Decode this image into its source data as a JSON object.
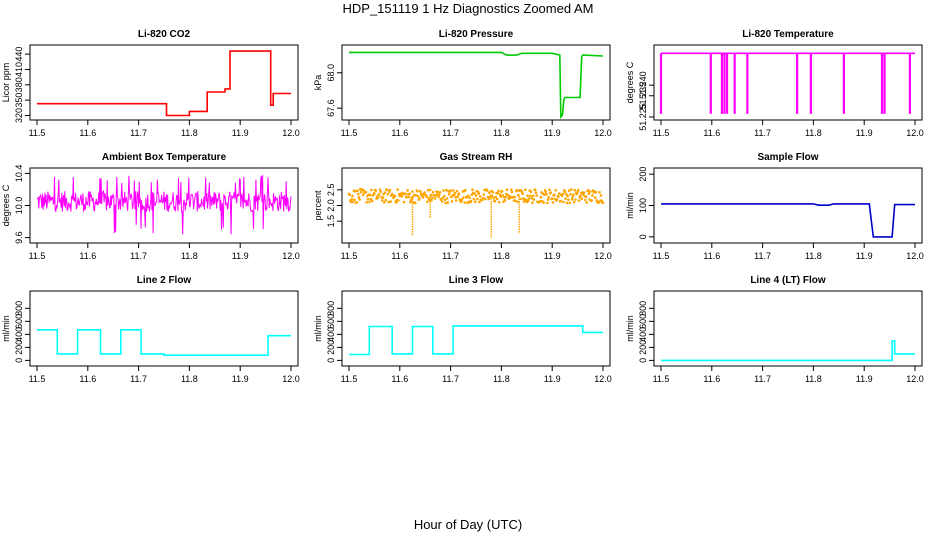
{
  "page": {
    "title": "HDP_151119  1 Hz Diagnostics Zoomed AM",
    "xlabel": "Hour of Day (UTC)"
  },
  "chart_data": [
    {
      "type": "line",
      "title": "Li-820 CO2",
      "ylabel": "Licor ppm",
      "color": "#ff0000",
      "xlim": [
        11.5,
        12.0
      ],
      "ylim": [
        317,
        452
      ],
      "xticks": [
        "11.5",
        "11.6",
        "11.7",
        "11.8",
        "11.9",
        "12.0"
      ],
      "yticks": [
        {
          "v": 320,
          "label": "320"
        },
        {
          "v": 350,
          "label": "350"
        },
        {
          "v": 380,
          "label": "380"
        },
        {
          "v": 410,
          "label": "410"
        },
        {
          "v": 440,
          "label": "440"
        }
      ],
      "series": [
        {
          "x": [
            11.5,
            11.755,
            11.755,
            11.8,
            11.8,
            11.835,
            11.835,
            11.87,
            11.87,
            11.88,
            11.88,
            11.96,
            11.96,
            11.965,
            11.965,
            12.0
          ],
          "y": [
            343,
            343,
            320,
            320,
            328,
            328,
            366,
            366,
            372,
            372,
            446,
            446,
            340,
            340,
            363,
            363
          ]
        }
      ]
    },
    {
      "type": "line",
      "title": "Li-820 Pressure",
      "ylabel": "kPa",
      "color": "#00cc00",
      "xlim": [
        11.5,
        12.0
      ],
      "ylim": [
        67.5,
        68.28
      ],
      "xticks": [
        "11.5",
        "11.6",
        "11.7",
        "11.8",
        "11.9",
        "12.0"
      ],
      "yticks": [
        {
          "v": 67.6,
          "label": "67.6"
        },
        {
          "v": 68.0,
          "label": "68.0"
        }
      ],
      "series": [
        {
          "x": [
            11.5,
            11.8,
            11.81,
            11.83,
            11.84,
            11.9,
            11.915,
            11.917,
            11.92,
            11.923,
            11.925,
            11.955,
            11.958,
            11.96,
            11.963,
            12.0
          ],
          "y": [
            68.23,
            68.23,
            68.2,
            68.2,
            68.22,
            68.22,
            68.2,
            67.5,
            67.52,
            67.7,
            67.72,
            67.72,
            68.18,
            68.2,
            68.2,
            68.19
          ]
        }
      ]
    },
    {
      "type": "line",
      "title": "Li-820 Temperature",
      "ylabel": "degrees C",
      "color": "#ff00ff",
      "xlim": [
        11.5,
        12.0
      ],
      "ylim": [
        51.225,
        51.2575
      ],
      "xticks": [
        "11.5",
        "11.6",
        "11.7",
        "11.8",
        "11.9",
        "12.0"
      ],
      "yticks": [
        {
          "v": 51.225,
          "label": "51.225"
        },
        {
          "v": 51.235,
          "label": "51.235"
        },
        {
          "v": 51.24,
          "label": "51.240"
        }
      ],
      "baseline": 51.255,
      "drops": [
        11.5,
        11.598,
        11.62,
        11.625,
        11.63,
        11.645,
        11.67,
        11.768,
        11.795,
        11.86,
        11.935,
        11.94,
        11.99
      ],
      "dropTo": 51.2265
    },
    {
      "type": "line",
      "title": "Ambient Box Temperature",
      "ylabel": "degrees C",
      "color": "#ff00ff",
      "xlim": [
        11.5,
        12.0
      ],
      "ylim": [
        9.57,
        10.43
      ],
      "xticks": [
        "11.5",
        "11.6",
        "11.7",
        "11.8",
        "11.9",
        "12.0"
      ],
      "yticks": [
        {
          "v": 9.6,
          "label": "9.6"
        },
        {
          "v": 10.0,
          "label": "10.0"
        },
        {
          "v": 10.4,
          "label": "10.4"
        }
      ],
      "noise": {
        "center": 10.05,
        "amp": 0.13,
        "spikeHigh": 10.38,
        "spikeLow": 9.62
      }
    },
    {
      "type": "scatter",
      "title": "Gas Stream RH",
      "ylabel": "percent",
      "color": "#ffa500",
      "xlim": [
        11.5,
        12.0
      ],
      "ylim": [
        0.9,
        3.1
      ],
      "xticks": [
        "11.5",
        "11.6",
        "11.7",
        "11.8",
        "11.9",
        "12.0"
      ],
      "yticks": [
        {
          "v": 1.5,
          "label": "1.5"
        },
        {
          "v": 2.0,
          "label": "2.0"
        },
        {
          "v": 2.5,
          "label": "2.5"
        }
      ],
      "noise": {
        "center": 2.3,
        "amp": 0.22
      },
      "dips": [
        {
          "x": 11.625,
          "y": 1.05
        },
        {
          "x": 11.66,
          "y": 1.6
        },
        {
          "x": 11.78,
          "y": 0.95
        },
        {
          "x": 11.835,
          "y": 1.1
        }
      ]
    },
    {
      "type": "line",
      "title": "Sample Flow",
      "ylabel": "ml/min",
      "color": "#0000cc",
      "xlim": [
        11.5,
        12.0
      ],
      "ylim": [
        -10,
        210
      ],
      "xticks": [
        "11.5",
        "11.6",
        "11.7",
        "11.8",
        "11.9",
        "12.0"
      ],
      "yticks": [
        {
          "v": 0,
          "label": "0"
        },
        {
          "v": 100,
          "label": "100"
        },
        {
          "v": 200,
          "label": "200"
        }
      ],
      "series": [
        {
          "x": [
            11.5,
            11.8,
            11.81,
            11.83,
            11.84,
            11.91,
            11.918,
            11.955,
            11.96,
            12.0
          ],
          "y": [
            105,
            105,
            101,
            101,
            105,
            105,
            0,
            0,
            103,
            103
          ]
        }
      ]
    },
    {
      "type": "line",
      "title": "Line 2 Flow",
      "ylabel": "ml/min",
      "color": "#00ffff",
      "xlim": [
        11.5,
        12.0
      ],
      "ylim": [
        -40,
        1020
      ],
      "xticks": [
        "11.5",
        "11.6",
        "11.7",
        "11.8",
        "11.9",
        "12.0"
      ],
      "yticks": [
        {
          "v": 0,
          "label": "0"
        },
        {
          "v": 200,
          "label": "200"
        },
        {
          "v": 400,
          "label": "400"
        },
        {
          "v": 600,
          "label": "600"
        },
        {
          "v": 800,
          "label": "800"
        }
      ],
      "series": [
        {
          "x": [
            11.5,
            11.54,
            11.54,
            11.58,
            11.58,
            11.625,
            11.625,
            11.665,
            11.665,
            11.705,
            11.705,
            11.75,
            11.75,
            11.955,
            11.955,
            12.0
          ],
          "y": [
            470,
            470,
            100,
            100,
            470,
            470,
            100,
            100,
            470,
            470,
            100,
            100,
            80,
            80,
            380,
            380
          ]
        }
      ]
    },
    {
      "type": "line",
      "title": "Line 3 Flow",
      "ylabel": "ml/min",
      "color": "#00ffff",
      "xlim": [
        11.5,
        12.0
      ],
      "ylim": [
        -40,
        1020
      ],
      "xticks": [
        "11.5",
        "11.6",
        "11.7",
        "11.8",
        "11.9",
        "12.0"
      ],
      "yticks": [
        {
          "v": 0,
          "label": "0"
        },
        {
          "v": 200,
          "label": "200"
        },
        {
          "v": 400,
          "label": "400"
        },
        {
          "v": 600,
          "label": "600"
        },
        {
          "v": 800,
          "label": "800"
        }
      ],
      "series": [
        {
          "x": [
            11.5,
            11.54,
            11.54,
            11.585,
            11.585,
            11.625,
            11.625,
            11.665,
            11.665,
            11.705,
            11.705,
            11.96,
            11.96,
            12.0
          ],
          "y": [
            90,
            90,
            520,
            520,
            100,
            100,
            520,
            520,
            100,
            100,
            530,
            530,
            430,
            430
          ]
        }
      ]
    },
    {
      "type": "line",
      "title": "Line 4 (LT) Flow",
      "ylabel": "ml/min",
      "color": "#00ffff",
      "xlim": [
        11.5,
        12.0
      ],
      "ylim": [
        -40,
        1020
      ],
      "xticks": [
        "11.5",
        "11.6",
        "11.7",
        "11.8",
        "11.9",
        "12.0"
      ],
      "yticks": [
        {
          "v": 0,
          "label": "0"
        },
        {
          "v": 200,
          "label": "200"
        },
        {
          "v": 400,
          "label": "400"
        },
        {
          "v": 600,
          "label": "600"
        },
        {
          "v": 800,
          "label": "800"
        }
      ],
      "series": [
        {
          "x": [
            11.5,
            11.955,
            11.955,
            11.96,
            11.96,
            12.0
          ],
          "y": [
            0,
            0,
            300,
            300,
            100,
            100
          ]
        }
      ]
    }
  ]
}
